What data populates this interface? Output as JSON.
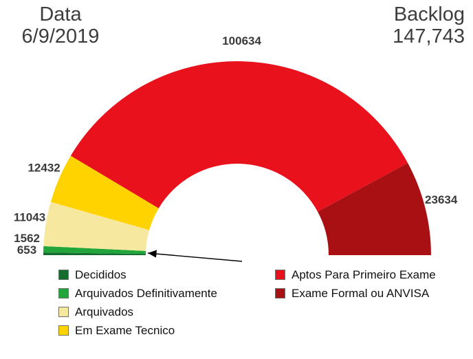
{
  "header": {
    "date_label": "Data",
    "date_value": "6/9/2019",
    "backlog_label": "Backlog",
    "backlog_value": "147,743"
  },
  "chart_data": {
    "type": "pie",
    "subtype": "half-donut-gauge",
    "title": "",
    "categories": [
      "Decididos",
      "Arquivados Definitivamente",
      "Arquivados",
      "Em Exame Tecnico",
      "Aptos Para Primeiro Exame",
      "Exame Formal ou ANVISA"
    ],
    "values": [
      653,
      1562,
      11043,
      12432,
      100634,
      23634
    ],
    "colors": [
      "#146c2e",
      "#22a63b",
      "#f7e8a0",
      "#ffd300",
      "#e8111c",
      "#a91014"
    ],
    "start_angle_deg": 180,
    "sweep_deg": 180,
    "legend_position": "bottom",
    "legend_split_index": 4,
    "annotations": {
      "arrow_points_to": "Decididos / Arquivados Definitivamente (smallest segments)"
    }
  }
}
